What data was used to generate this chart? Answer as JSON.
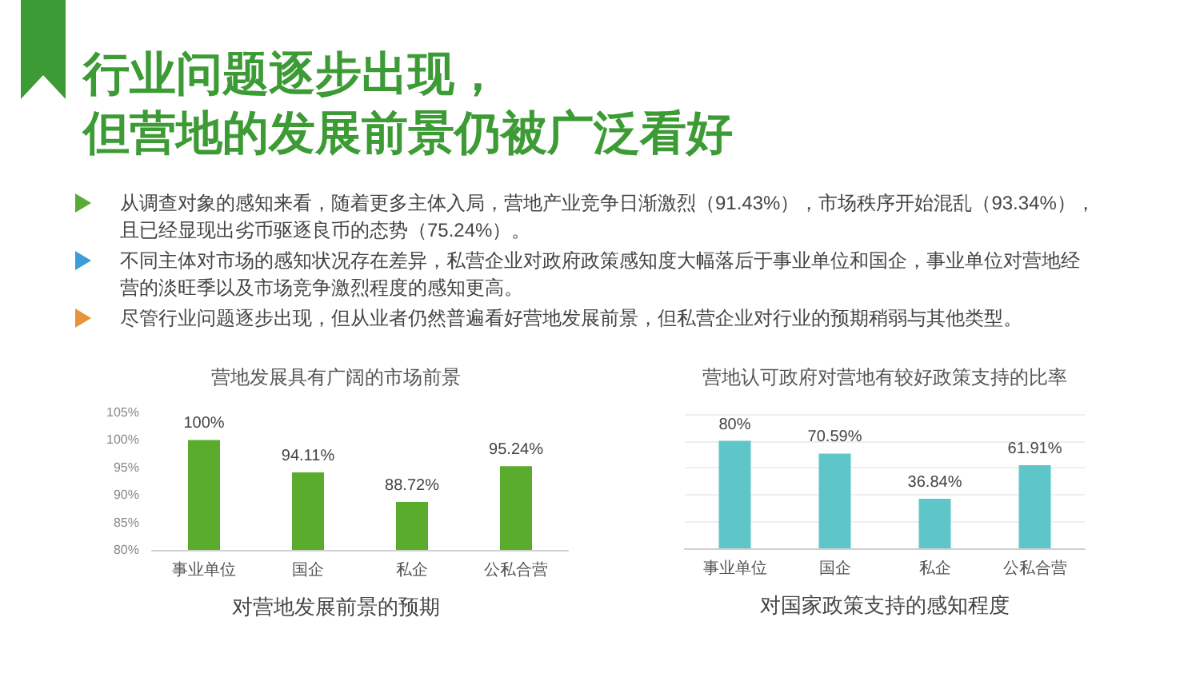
{
  "chart_data": [
    {
      "type": "other",
      "title": "行业问题逐步出现，",
      "subtitle": "但营地的发展前景仍被广泛看好",
      "annotations": [
        "从调查对象的感知来看，随着更多主体入局，营地产业竞争日渐激烈（91.43%），市场秩序开始混乱（93.34%），且已经显现出劣币驱逐良币的态势（75.24%）。",
        "不同主体对市场的感知状况存在差异，私营企业对政府政策感知度大幅落后于事业单位和国企，事业单位对营地经营的淡旺季以及市场竞争激烈程度的感知更高。",
        "尽管行业问题逐步出现，但从业者仍然普遍看好营地发展前景，但私营企业对行业的预期稍弱与其他类型。"
      ]
    },
    {
      "type": "bar",
      "title": "营地发展具有广阔的市场前景",
      "xlabel": "对营地发展前景的预期",
      "categories": [
        "事业单位",
        "国企",
        "私企",
        "公私合营"
      ],
      "values": [
        100,
        94.11,
        88.72,
        95.24
      ],
      "value_labels": [
        "100%",
        "94.11%",
        "88.72%",
        "95.24%"
      ],
      "color": "#5aad2c",
      "ylim": [
        80,
        105
      ],
      "yticks": [
        {
          "value": 80,
          "label": "80%"
        },
        {
          "value": 85,
          "label": "85%"
        },
        {
          "value": 90,
          "label": "90%"
        },
        {
          "value": 95,
          "label": "95%"
        },
        {
          "value": 100,
          "label": "100%"
        },
        {
          "value": 105,
          "label": "105%"
        }
      ],
      "grid": false
    },
    {
      "type": "bar",
      "title": "营地认可政府对营地有较好政策支持的比率",
      "xlabel": "对国家政策支持的感知程度",
      "categories": [
        "事业单位",
        "国企",
        "私企",
        "公私合营"
      ],
      "values": [
        80,
        70.59,
        36.84,
        61.91
      ],
      "value_labels": [
        "80%",
        "70.59%",
        "36.84%",
        "61.91%"
      ],
      "color": "#5ec6c8",
      "ylim": [
        0,
        100
      ],
      "yticks": [
        {
          "value": 0,
          "label": null
        },
        {
          "value": 20,
          "label": null
        },
        {
          "value": 40,
          "label": null
        },
        {
          "value": 60,
          "label": null
        },
        {
          "value": 80,
          "label": null
        },
        {
          "value": 100,
          "label": null
        }
      ],
      "grid": "y",
      "tick_labels": "x"
    }
  ]
}
